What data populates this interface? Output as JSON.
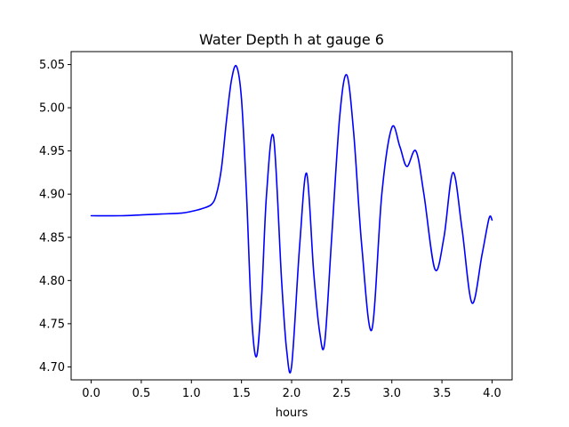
{
  "chart_data": {
    "type": "line",
    "title": "Water Depth h at gauge 6",
    "xlabel": "hours",
    "ylabel": "",
    "xlim": [
      -0.2,
      4.2
    ],
    "ylim": [
      4.685,
      5.065
    ],
    "x_ticks": [
      0.0,
      0.5,
      1.0,
      1.5,
      2.0,
      2.5,
      3.0,
      3.5,
      4.0
    ],
    "x_tick_labels": [
      "0.0",
      "0.5",
      "1.0",
      "1.5",
      "2.0",
      "2.5",
      "3.0",
      "3.5",
      "4.0"
    ],
    "y_ticks": [
      4.7,
      4.75,
      4.8,
      4.85,
      4.9,
      4.95,
      5.0,
      5.05
    ],
    "y_tick_labels": [
      "4.70",
      "4.75",
      "4.80",
      "4.85",
      "4.90",
      "4.95",
      "5.00",
      "5.05"
    ],
    "grid": false,
    "series": [
      {
        "color": "#0000ff",
        "x": [
          0.0,
          0.3,
          0.5,
          0.7,
          0.9,
          1.0,
          1.1,
          1.2,
          1.25,
          1.3,
          1.35,
          1.4,
          1.45,
          1.5,
          1.55,
          1.6,
          1.65,
          1.7,
          1.75,
          1.82,
          1.9,
          1.95,
          2.0,
          2.08,
          2.15,
          2.22,
          2.28,
          2.33,
          2.4,
          2.48,
          2.55,
          2.62,
          2.7,
          2.8,
          2.9,
          3.0,
          3.08,
          3.15,
          3.24,
          3.32,
          3.43,
          3.52,
          3.61,
          3.7,
          3.8,
          3.9,
          3.97,
          4.0
        ],
        "y": [
          4.875,
          4.875,
          4.876,
          4.877,
          4.878,
          4.88,
          4.883,
          4.888,
          4.9,
          4.93,
          4.985,
          5.032,
          5.048,
          5.01,
          4.9,
          4.76,
          4.712,
          4.78,
          4.9,
          4.966,
          4.8,
          4.72,
          4.701,
          4.84,
          4.924,
          4.81,
          4.74,
          4.728,
          4.85,
          4.99,
          5.038,
          4.97,
          4.84,
          4.743,
          4.9,
          4.977,
          4.955,
          4.932,
          4.95,
          4.9,
          4.813,
          4.85,
          4.925,
          4.86,
          4.774,
          4.83,
          4.872,
          4.87
        ]
      }
    ]
  }
}
